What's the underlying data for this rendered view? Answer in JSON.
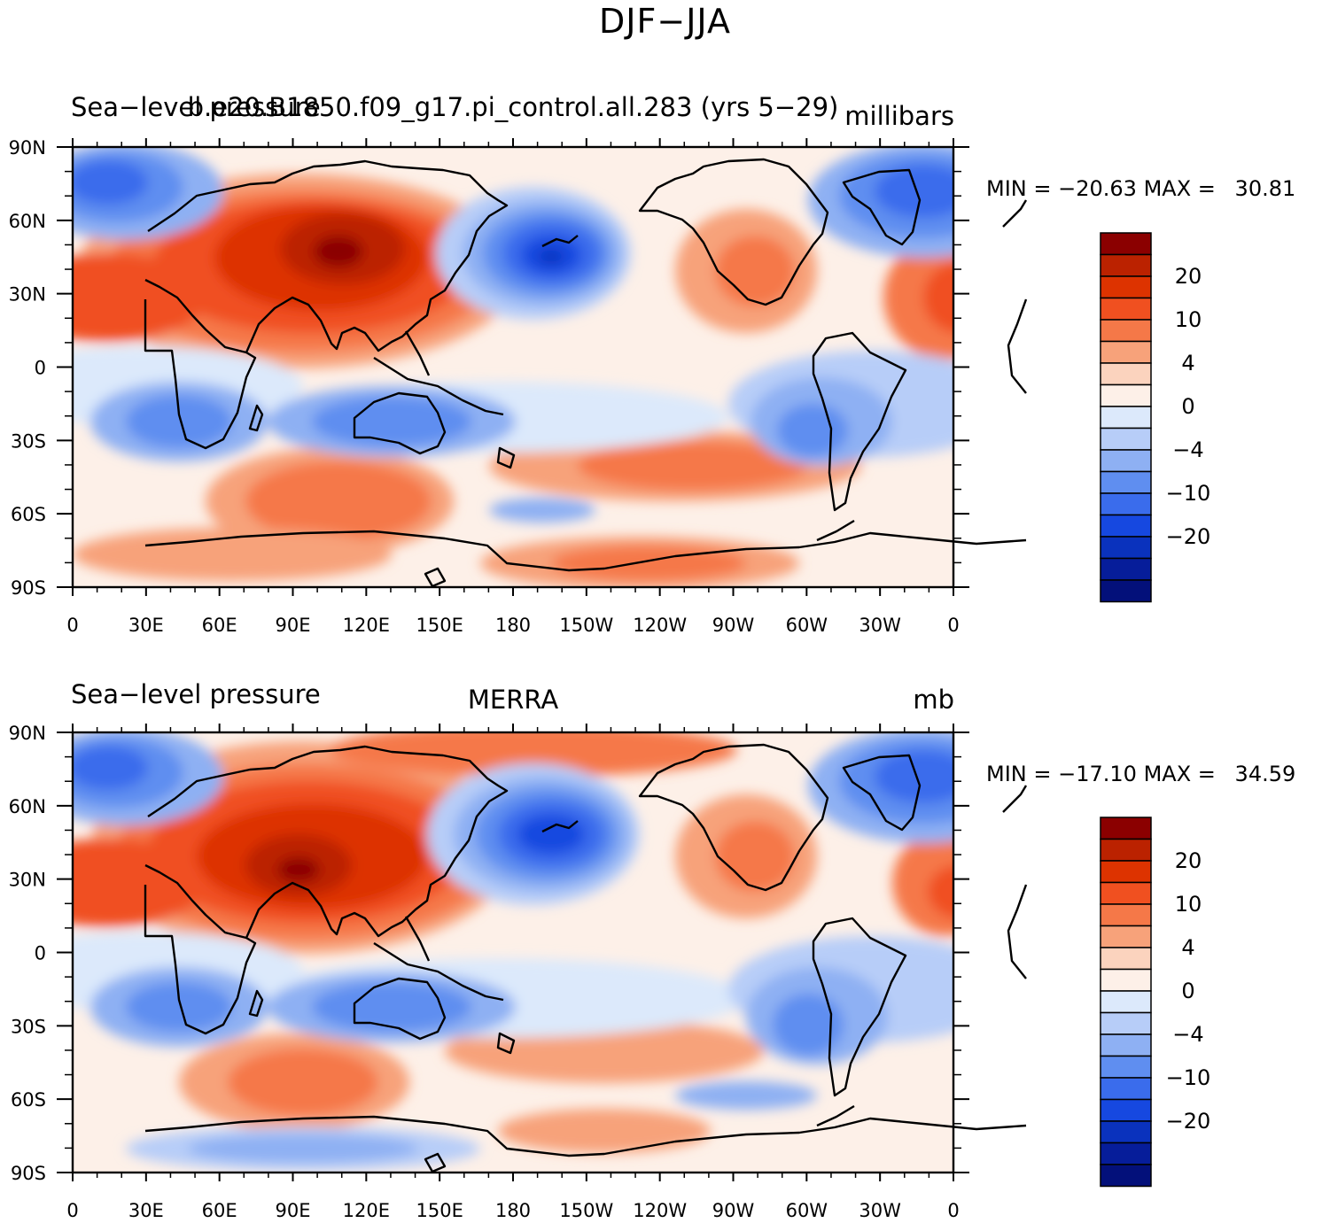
{
  "title": "DJF−JJA",
  "panels": [
    {
      "left_label": "Sea−level pressure",
      "center_label": "b.e20.B1850.f09_g17.pi_control.all.283 (yrs 5−29)",
      "right_label": "millibars",
      "minmax": {
        "min_label": "MIN =",
        "min": "−20.63",
        "max_label": "MAX =",
        "max": "30.81"
      }
    },
    {
      "left_label": "Sea−level pressure",
      "center_label": "MERRA",
      "right_label": "mb",
      "minmax": {
        "min_label": "MIN =",
        "min": "−17.10",
        "max_label": "MAX =",
        "max": "34.59"
      }
    }
  ],
  "x_ticks": [
    "0",
    "30E",
    "60E",
    "90E",
    "120E",
    "150E",
    "180",
    "150W",
    "120W",
    "90W",
    "60W",
    "30W",
    "0"
  ],
  "y_ticks": [
    "90N",
    "60N",
    "30N",
    "0",
    "30S",
    "60S",
    "90S"
  ],
  "colorbar": {
    "colors": [
      "#8b0000",
      "#bb2200",
      "#dd3300",
      "#f05020",
      "#f57848",
      "#f7a27a",
      "#fbd3be",
      "#fdf0e8",
      "#dce9fb",
      "#b7cdf8",
      "#8eb0f3",
      "#5f8ef0",
      "#3a6cec",
      "#1648e0",
      "#0a32bd",
      "#061d9a",
      "#03107a"
    ],
    "labels": [
      "20",
      "10",
      "4",
      "0",
      "−4",
      "−10",
      "−20"
    ]
  }
}
